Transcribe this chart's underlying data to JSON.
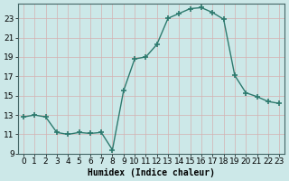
{
  "x": [
    0,
    1,
    2,
    3,
    4,
    5,
    6,
    7,
    8,
    9,
    10,
    11,
    12,
    13,
    14,
    15,
    16,
    17,
    18,
    19,
    20,
    21,
    22,
    23
  ],
  "y": [
    12.8,
    13.0,
    12.8,
    11.2,
    11.0,
    11.2,
    11.1,
    11.2,
    9.4,
    15.5,
    18.8,
    19.0,
    20.3,
    23.0,
    23.5,
    24.0,
    24.1,
    23.6,
    22.9,
    17.1,
    15.3,
    14.9,
    14.4,
    14.2
  ],
  "line_color": "#2d7a6e",
  "marker": "+",
  "marker_size": 4,
  "marker_lw": 1.2,
  "bg_color": "#cce8e8",
  "grid_color_v": "#d4b0b0",
  "grid_color_h": "#b8c8c8",
  "xlabel": "Humidex (Indice chaleur)",
  "xlim": [
    -0.5,
    23.5
  ],
  "ylim": [
    9,
    24.5
  ],
  "yticks": [
    9,
    11,
    13,
    15,
    17,
    19,
    21,
    23
  ],
  "xticks": [
    0,
    1,
    2,
    3,
    4,
    5,
    6,
    7,
    8,
    9,
    10,
    11,
    12,
    13,
    14,
    15,
    16,
    17,
    18,
    19,
    20,
    21,
    22,
    23
  ],
  "xlabel_fontsize": 7,
  "tick_fontsize": 6.5,
  "line_width": 1.0
}
